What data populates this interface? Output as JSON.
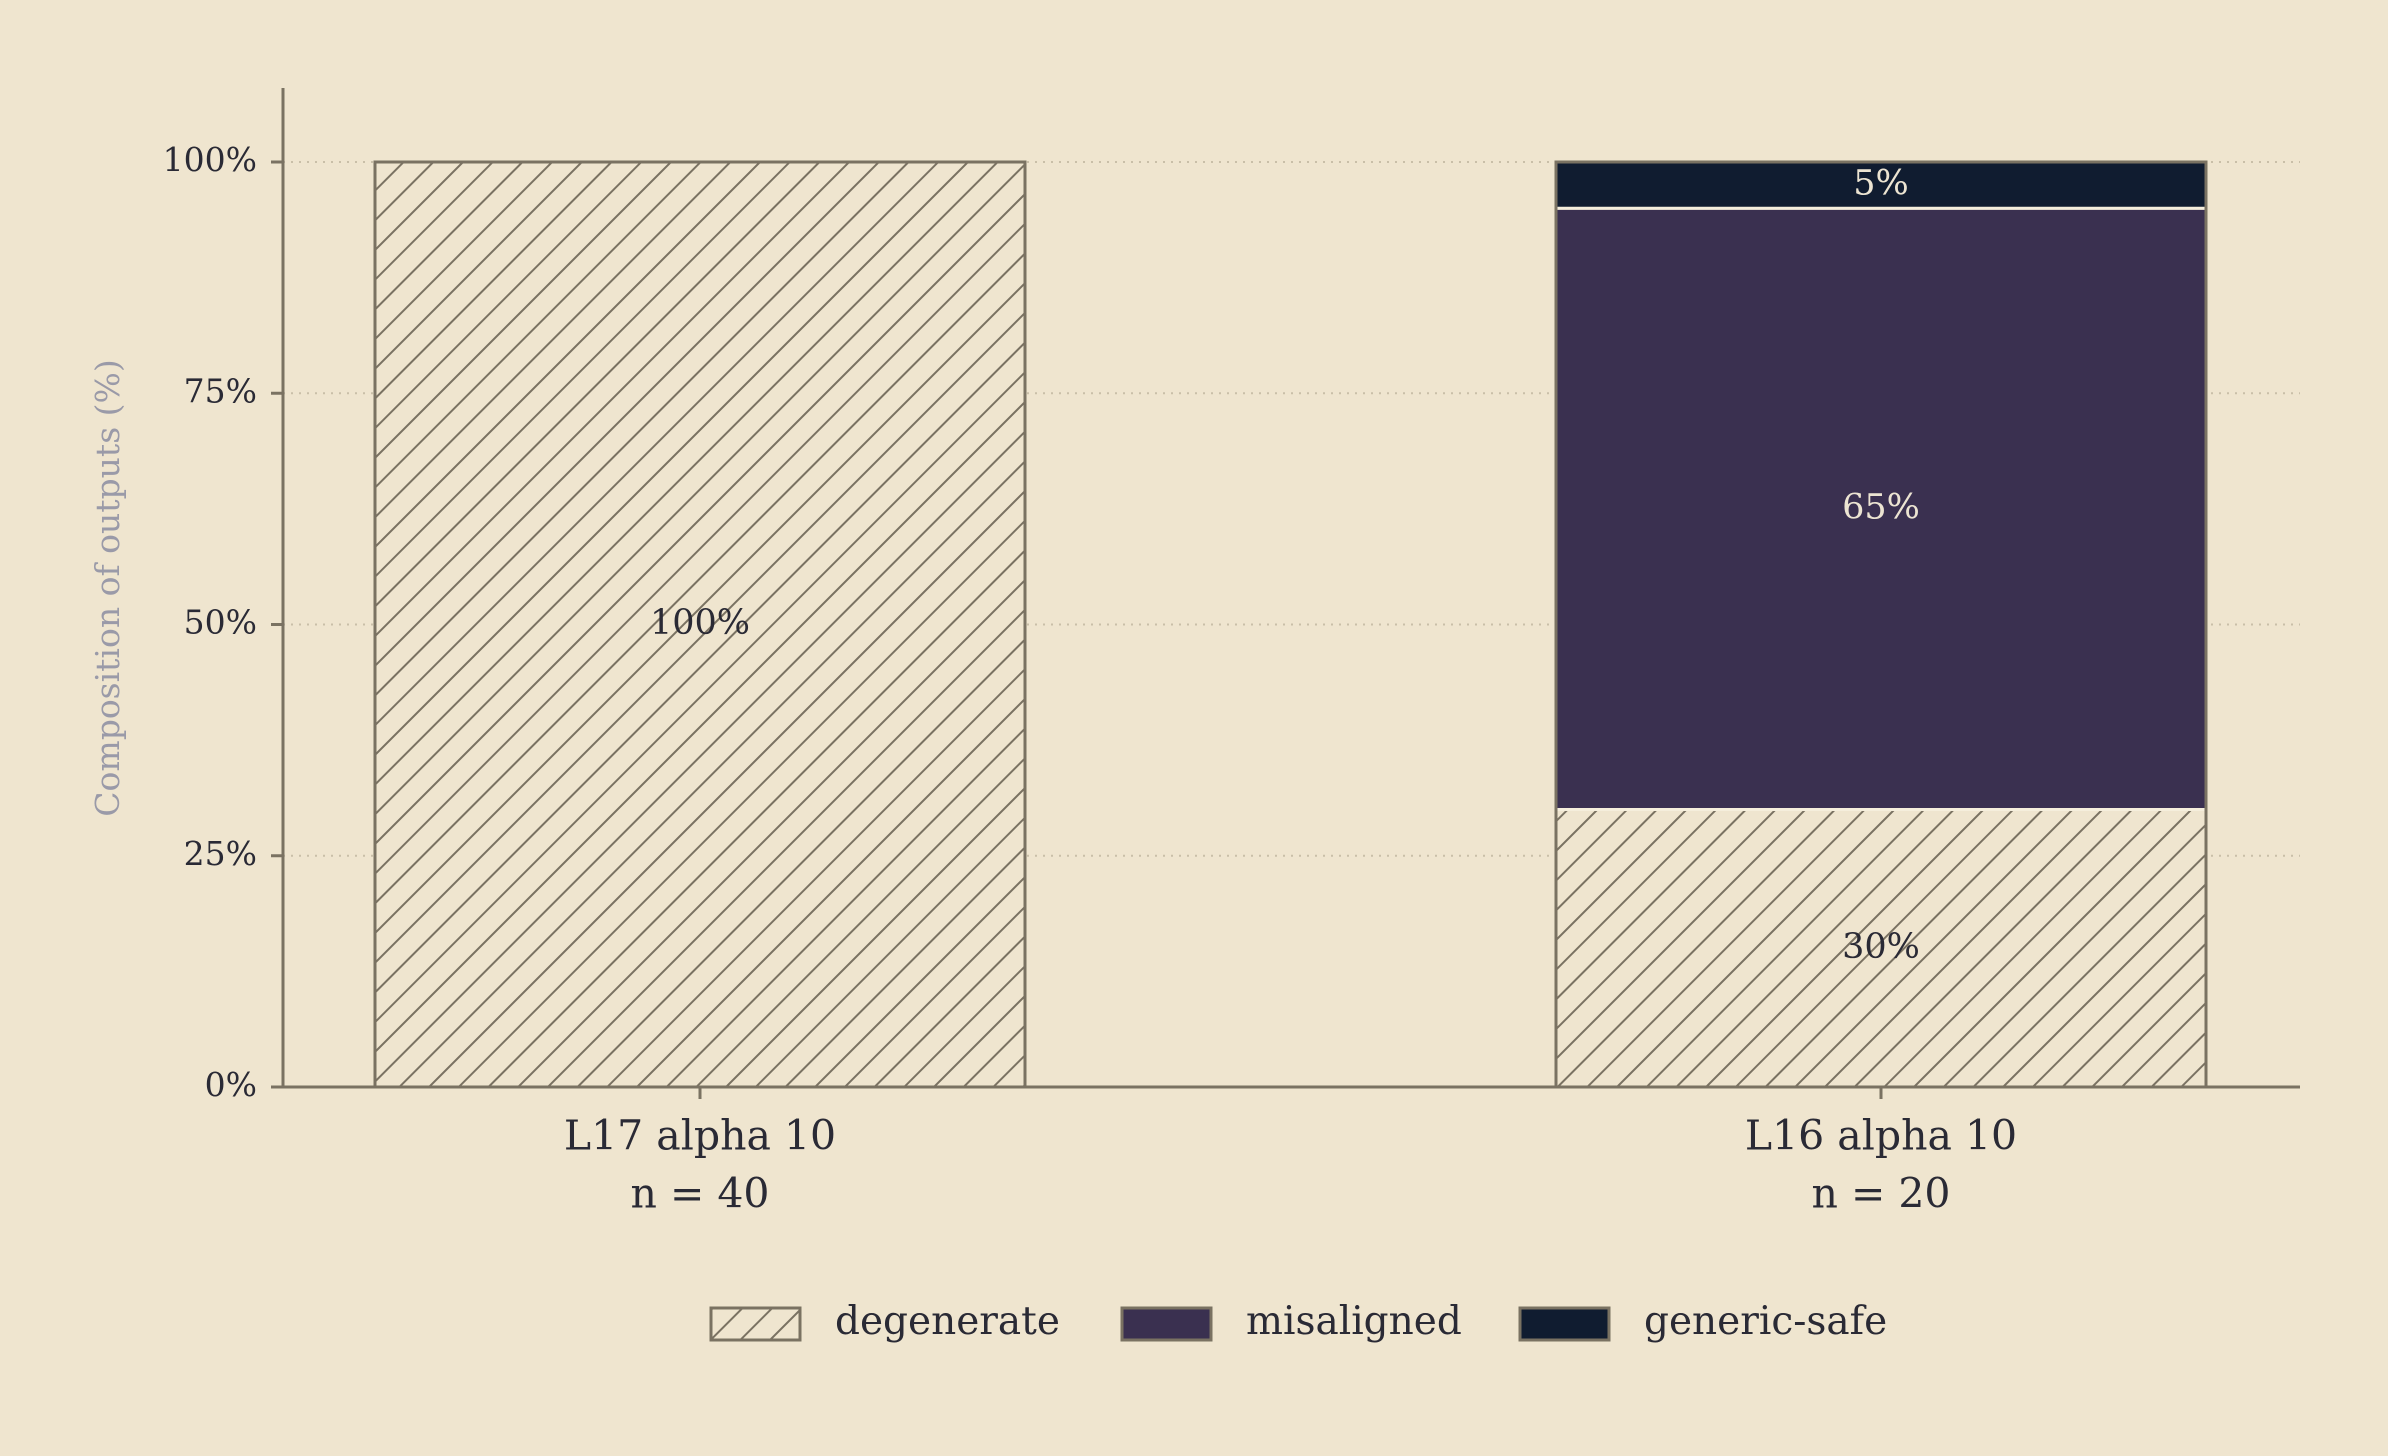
{
  "chart_data": {
    "type": "stacked_bar",
    "ylabel": "Composition of outputs (%)",
    "categories": [
      "L17 alpha 10",
      "L16 alpha 10"
    ],
    "sample_sizes": [
      "n = 40",
      "n = 20"
    ],
    "series": [
      {
        "name": "degenerate",
        "color": "#efe5cf",
        "hatch": true,
        "values": [
          100,
          30
        ],
        "value_labels": [
          "100%",
          "30%"
        ]
      },
      {
        "name": "misaligned",
        "color": "#3a3050",
        "hatch": false,
        "values": [
          0,
          65
        ],
        "value_labels": [
          null,
          "65%"
        ]
      },
      {
        "name": "generic-safe",
        "color": "#101c30",
        "hatch": false,
        "values": [
          0,
          5
        ],
        "value_labels": [
          null,
          "5%"
        ]
      }
    ],
    "ylim": [
      0,
      108
    ],
    "yticks": [
      {
        "value": 0,
        "label": "0%"
      },
      {
        "value": 25,
        "label": "25%"
      },
      {
        "value": 50,
        "label": "50%"
      },
      {
        "value": 75,
        "label": "75%"
      },
      {
        "value": 100,
        "label": "100%"
      }
    ],
    "grid": true,
    "legend": "bottom"
  }
}
